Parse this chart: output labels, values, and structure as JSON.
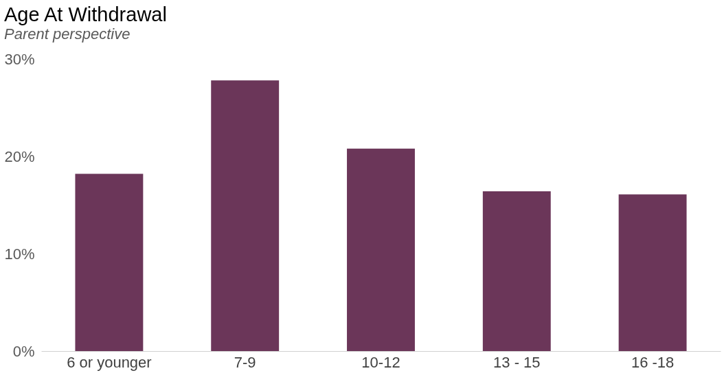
{
  "chart_data": {
    "type": "bar",
    "title": "Age At Withdrawal",
    "subtitle": "Parent perspective",
    "categories": [
      "6 or younger",
      "7-9",
      "10-12",
      "13 - 15",
      "16 -18"
    ],
    "values": [
      18.2,
      27.8,
      20.8,
      16.4,
      16.1
    ],
    "color": "#6b3659",
    "ylim": [
      0,
      30
    ],
    "yticks": [
      {
        "value": 0,
        "label": "0%"
      },
      {
        "value": 10,
        "label": "10%"
      },
      {
        "value": 20,
        "label": "20%"
      },
      {
        "value": 30,
        "label": "30%"
      }
    ],
    "grid": false
  }
}
